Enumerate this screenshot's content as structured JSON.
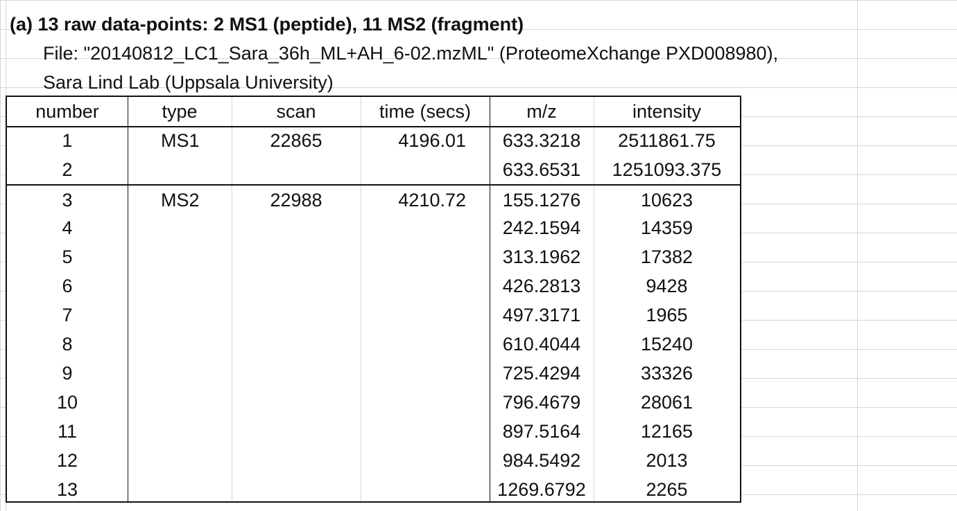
{
  "title": "(a) 13 raw data-points: 2 MS1 (peptide), 11 MS2 (fragment)",
  "file_line": "File: \"20140812_LC1_Sara_36h_ML+AH_6-02.mzML\" (ProteomeXchange PXD008980),",
  "lab_line": "Sara Lind Lab (Uppsala University)",
  "table": {
    "headers": {
      "number": "number",
      "type": "type",
      "scan": "scan",
      "time": "time (secs)",
      "mz": "m/z",
      "intensity": "intensity"
    },
    "rows": [
      {
        "number": "1",
        "type": "MS1",
        "scan": "22865",
        "time": "4196.01",
        "mz": "633.3218",
        "intensity": "2511861.75"
      },
      {
        "number": "2",
        "type": "",
        "scan": "",
        "time": "",
        "mz": "633.6531",
        "intensity": "1251093.375"
      },
      {
        "number": "3",
        "type": "MS2",
        "scan": "22988",
        "time": "4210.72",
        "mz": "155.1276",
        "intensity": "10623"
      },
      {
        "number": "4",
        "type": "",
        "scan": "",
        "time": "",
        "mz": "242.1594",
        "intensity": "14359"
      },
      {
        "number": "5",
        "type": "",
        "scan": "",
        "time": "",
        "mz": "313.1962",
        "intensity": "17382"
      },
      {
        "number": "6",
        "type": "",
        "scan": "",
        "time": "",
        "mz": "426.2813",
        "intensity": "9428"
      },
      {
        "number": "7",
        "type": "",
        "scan": "",
        "time": "",
        "mz": "497.3171",
        "intensity": "1965"
      },
      {
        "number": "8",
        "type": "",
        "scan": "",
        "time": "",
        "mz": "610.4044",
        "intensity": "15240"
      },
      {
        "number": "9",
        "type": "",
        "scan": "",
        "time": "",
        "mz": "725.4294",
        "intensity": "33326"
      },
      {
        "number": "10",
        "type": "",
        "scan": "",
        "time": "",
        "mz": "796.4679",
        "intensity": "28061"
      },
      {
        "number": "11",
        "type": "",
        "scan": "",
        "time": "",
        "mz": "897.5164",
        "intensity": "12165"
      },
      {
        "number": "12",
        "type": "",
        "scan": "",
        "time": "",
        "mz": "984.5492",
        "intensity": "2013"
      },
      {
        "number": "13",
        "type": "",
        "scan": "",
        "time": "",
        "mz": "1269.6792",
        "intensity": "2265"
      }
    ]
  }
}
